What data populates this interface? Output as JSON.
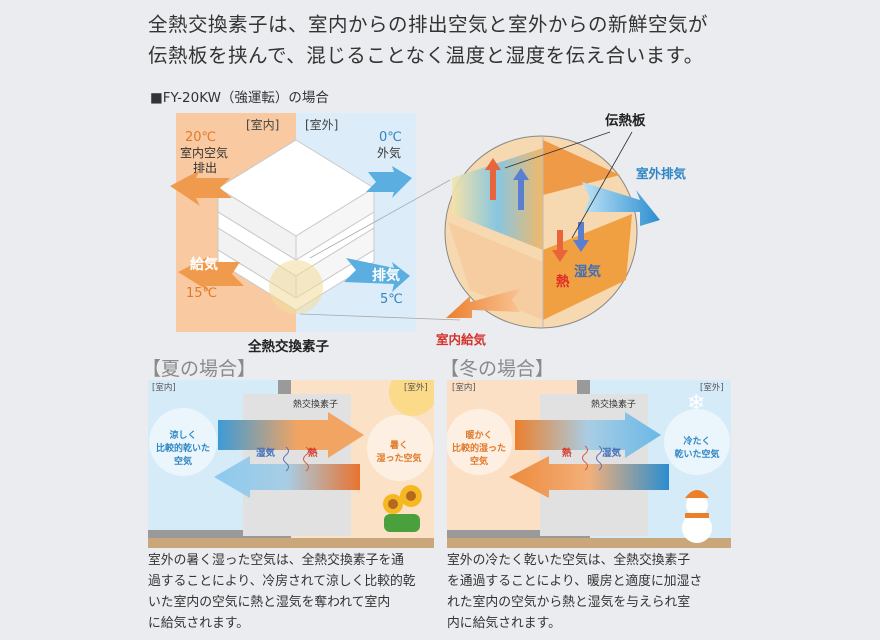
{
  "intro": {
    "line1": "全熱交換素子は、室内からの排出空気と室外からの新鮮空気が",
    "line2": "伝熱板を挟んで、混じることなく温度と湿度を伝え合います。"
  },
  "diagram": {
    "subtitle": "■FY-20KW（強運転）の場合",
    "indoor_label": "[室内]",
    "outdoor_label": "[室外]",
    "exhaust_in_temp": "20℃",
    "exhaust_in_label_1": "室内空気",
    "exhaust_in_label_2": "排出",
    "outside_temp": "0℃",
    "outside_label": "外気",
    "supply_label": "給気",
    "supply_temp": "15℃",
    "exhaust_label": "排気",
    "exhaust_temp": "5℃",
    "element_label": "全熱交換素子",
    "plate_label": "伝熱板",
    "outdoor_exhaust_label": "室外排気",
    "heat_label": "熱",
    "moisture_label": "湿気",
    "indoor_supply_label": "室内給気"
  },
  "summer": {
    "title": "【夏の場合】",
    "indoor": "[室内]",
    "outdoor": "[室外]",
    "element": "熱交換素子",
    "moisture": "湿気",
    "heat": "熱",
    "inside_air_1": "涼しく",
    "inside_air_2": "比較的乾いた",
    "inside_air_3": "空気",
    "outside_air_1": "暑く",
    "outside_air_2": "湿った空気",
    "desc_1": "室外の暑く湿った空気は、全熱交換素子を通",
    "desc_2": "過することにより、冷房されて涼しく比較的乾",
    "desc_3": "いた室内の空気に熱と湿気を奪われて室内",
    "desc_4": "に給気されます。"
  },
  "winter": {
    "title": "【冬の場合】",
    "indoor": "[室内]",
    "outdoor": "[室外]",
    "element": "熱交換素子",
    "moisture": "湿気",
    "heat": "熱",
    "inside_air_1": "暖かく",
    "inside_air_2": "比較的湿った",
    "inside_air_3": "空気",
    "outside_air_1": "冷たく",
    "outside_air_2": "乾いた空気",
    "desc_1": "室外の冷たく乾いた空気は、全熱交換素子",
    "desc_2": "を通過することにより、暖房と適度に加湿さ",
    "desc_3": "れた室内の空気から熱と湿気を与えられ室",
    "desc_4": "内に給気されます。"
  },
  "colors": {
    "orange": "#ee8a3c",
    "blue": "#3a9bd5",
    "red": "#e02a2a",
    "bg": "#eaecef"
  }
}
